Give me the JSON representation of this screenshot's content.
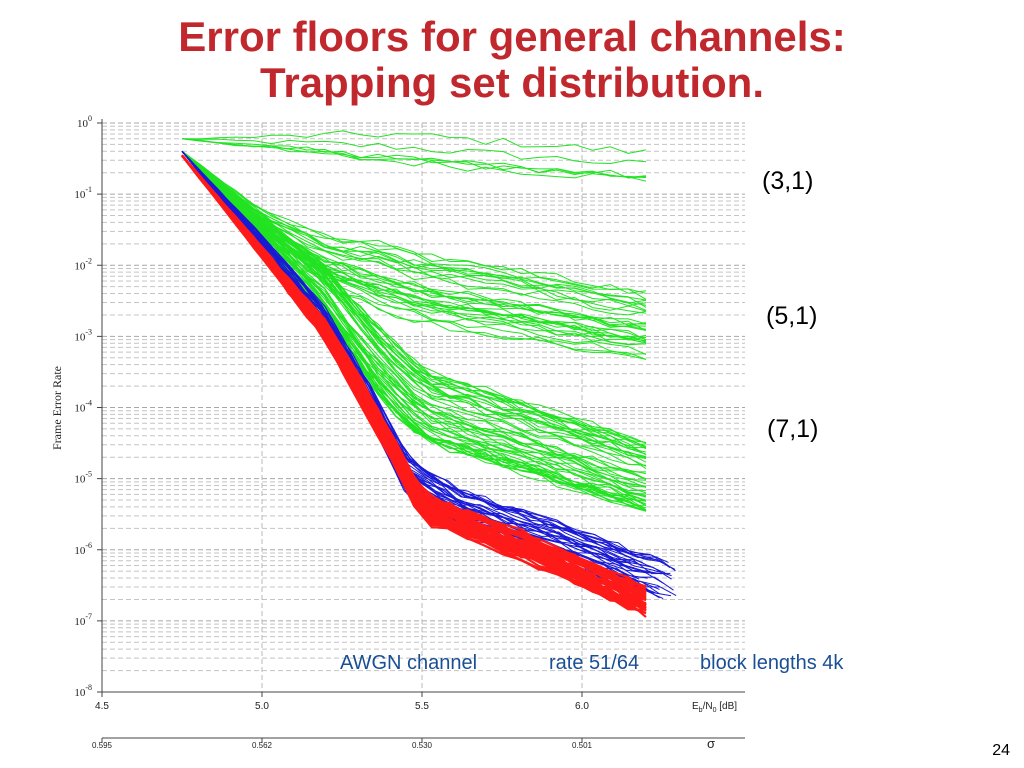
{
  "slide": {
    "title_line1": "Error floors for general channels:",
    "title_line2": "Trapping set distribution.",
    "page_number": "24"
  },
  "labels": {
    "ts_31": "(3,1)",
    "ts_51": "(5,1)",
    "ts_71": "(7,1)"
  },
  "caption": {
    "channel": "AWGN channel",
    "rate": "rate 51/64",
    "block": "block lengths 4k"
  },
  "chart_data": {
    "type": "line",
    "yscale": "log",
    "ylim": [
      1e-08,
      1
    ],
    "xlim": [
      4.5,
      6.5
    ],
    "ylabel": "Frame Error Rate",
    "xlabel": "Eb/N0 [dB]",
    "sigma_label": "σ",
    "x_ticks": [
      "4.5",
      "5.0",
      "5.5",
      "6.0"
    ],
    "x_tick_values": [
      4.5,
      5.0,
      5.5,
      6.0
    ],
    "sigma_ticks": [
      "0.595",
      "0.562",
      "0.530",
      "0.501"
    ],
    "y_tick_exponents": [
      "0",
      "-1",
      "-2",
      "-3",
      "-4",
      "-5",
      "-6",
      "-7",
      "-8"
    ],
    "grid": true,
    "colors": {
      "green": "#22e322",
      "blue": "#1a1ad6",
      "red": "#ff1a1a"
    },
    "series": [
      {
        "color": "green",
        "count": 6,
        "x_start": 4.75,
        "x_end": 6.2,
        "x": [
          4.75,
          6.2
        ],
        "y": [
          0.6,
          0.2
        ],
        "spread": 0.35
      },
      {
        "color": "green",
        "count": 34,
        "x_start": 4.75,
        "x_end": 6.2,
        "x": [
          4.75,
          5.0,
          5.2,
          5.5,
          6.2
        ],
        "y": [
          0.4,
          0.04,
          0.012,
          0.005,
          0.0015
        ],
        "spread": 0.5
      },
      {
        "color": "green",
        "count": 55,
        "x_start": 4.75,
        "x_end": 6.2,
        "x": [
          4.75,
          5.0,
          5.2,
          5.35,
          5.5,
          6.2
        ],
        "y": [
          0.4,
          0.03,
          0.004,
          0.0005,
          0.0001,
          1e-05
        ],
        "spread": 0.55
      },
      {
        "color": "blue",
        "count": 40,
        "x_start": 4.75,
        "x_end": 6.3,
        "x": [
          4.75,
          5.0,
          5.2,
          5.35,
          5.45,
          5.6,
          6.3
        ],
        "y": [
          0.4,
          0.02,
          0.0015,
          9e-05,
          1.1e-05,
          4e-06,
          3e-07
        ],
        "spread": 0.3
      },
      {
        "color": "red",
        "count": 40,
        "x_start": 4.75,
        "x_end": 6.2,
        "x": [
          4.75,
          5.0,
          5.2,
          5.35,
          5.5,
          5.8,
          6.2
        ],
        "y": [
          0.35,
          0.015,
          0.0012,
          8e-05,
          4e-06,
          1.2e-06,
          1.9e-07
        ],
        "spread": 0.18
      }
    ]
  }
}
